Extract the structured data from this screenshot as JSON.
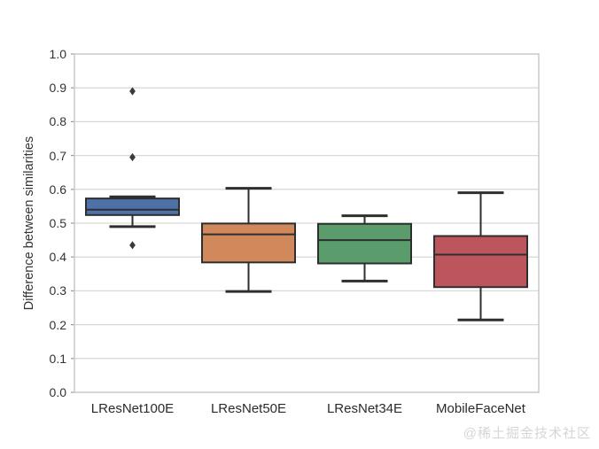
{
  "watermark": {
    "text": "@稀土掘金技术社区"
  },
  "chart_data": {
    "type": "boxplot",
    "title": "",
    "xlabel": "",
    "ylabel": "Difference between similarities",
    "ylim": [
      0.0,
      1.0
    ],
    "ytick_step": 0.1,
    "ytick_labels": [
      "0.0",
      "0.1",
      "0.2",
      "0.3",
      "0.4",
      "0.5",
      "0.6",
      "0.7",
      "0.8",
      "0.9",
      "1.0"
    ],
    "grid": "horizontal",
    "legend": "none",
    "categories": [
      "LResNet100E",
      "LResNet50E",
      "LResNet34E",
      "MobileFaceNet"
    ],
    "series": [
      {
        "category": "LResNet100E",
        "color": "#4e72a8",
        "whisker_low": 0.49,
        "q1": 0.524,
        "median": 0.54,
        "q3": 0.573,
        "whisker_high": 0.578,
        "outliers": [
          0.435,
          0.695,
          0.89
        ]
      },
      {
        "category": "LResNet50E",
        "color": "#d1895c",
        "whisker_low": 0.298,
        "q1": 0.384,
        "median": 0.467,
        "q3": 0.499,
        "whisker_high": 0.603,
        "outliers": []
      },
      {
        "category": "LResNet34E",
        "color": "#5b9c6c",
        "whisker_low": 0.329,
        "q1": 0.381,
        "median": 0.45,
        "q3": 0.498,
        "whisker_high": 0.522,
        "outliers": []
      },
      {
        "category": "MobileFaceNet",
        "color": "#bd565c",
        "whisker_low": 0.214,
        "q1": 0.311,
        "median": 0.407,
        "q3": 0.462,
        "whisker_high": 0.59,
        "outliers": []
      }
    ],
    "colors": {
      "grid": "#d9d9d9",
      "spine": "#c9c9c9",
      "tick_mark": "#999999",
      "box_edge": "#2e2e2e",
      "outlier": "#3a3a3a",
      "text": "#333333",
      "watermark": "#d6d6d6",
      "background": "#ffffff"
    }
  }
}
